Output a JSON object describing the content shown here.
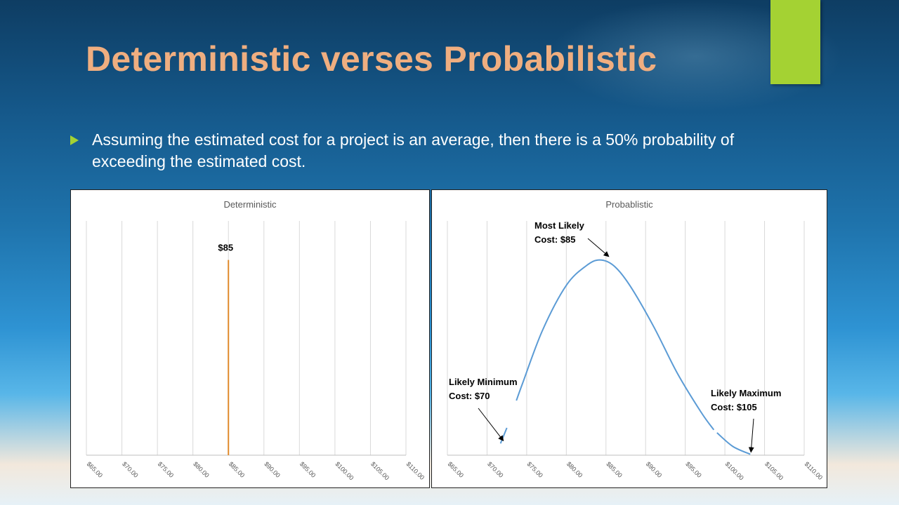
{
  "slide": {
    "title": "Deterministic verses Probabilistic",
    "bullet": "Assuming the estimated cost for a project is an average, then there is a 50% probability of exceeding the estimated cost.",
    "colors": {
      "title": "#efae80",
      "accent": "#a4d233",
      "bullet_icon": "#a4d233",
      "text": "#ffffff"
    }
  },
  "chart_data": [
    {
      "type": "bar",
      "title": "Deterministic",
      "x_tick_labels": [
        "$65.00",
        "$70.00",
        "$75.00",
        "$80.00",
        "$85.00",
        "$90.00",
        "$95.00",
        "$100.00",
        "$105.00",
        "$110.00"
      ],
      "xlim": [
        65,
        110
      ],
      "points": [
        {
          "x": 85,
          "y": 1,
          "label": "$85"
        }
      ],
      "ylim": [
        0,
        1.2
      ],
      "color": "#e08a2c",
      "grid": true
    },
    {
      "type": "line",
      "title": "Probablistic",
      "x_tick_labels": [
        "$65.00",
        "$70.00",
        "$75.00",
        "$80.00",
        "$85.00",
        "$90.00",
        "$95.00",
        "$100.00",
        "$105.00",
        "$110.00"
      ],
      "xlim": [
        65,
        110
      ],
      "ylim": [
        0,
        1.2
      ],
      "color": "#5b9bd5",
      "grid": true,
      "segments": [
        [
          {
            "x": 71.7,
            "y": 0.06
          },
          {
            "x": 72.5,
            "y": 0.14
          }
        ],
        [
          {
            "x": 73.7,
            "y": 0.28
          },
          {
            "x": 74.5,
            "y": 0.37
          },
          {
            "x": 77,
            "y": 0.64
          },
          {
            "x": 80,
            "y": 0.87
          },
          {
            "x": 82.5,
            "y": 0.97
          },
          {
            "x": 84.2,
            "y": 1.0
          },
          {
            "x": 86,
            "y": 0.97
          },
          {
            "x": 88,
            "y": 0.87
          },
          {
            "x": 91,
            "y": 0.66
          },
          {
            "x": 94,
            "y": 0.42
          },
          {
            "x": 97,
            "y": 0.22
          },
          {
            "x": 98.6,
            "y": 0.13
          }
        ],
        [
          {
            "x": 99.0,
            "y": 0.115
          },
          {
            "x": 101,
            "y": 0.045
          },
          {
            "x": 103.2,
            "y": 0.005
          }
        ]
      ],
      "annotations": [
        {
          "line1": "Most Likely",
          "line2": "Cost:  $85",
          "x": 85,
          "y": 1.0
        },
        {
          "line1": "Likely Minimum",
          "line2": "Cost:  $70",
          "x": 71.7,
          "y": 0.06
        },
        {
          "line1": "Likely Maximum",
          "line2": "Cost:  $105",
          "x": 103.2,
          "y": 0.005
        }
      ]
    }
  ]
}
